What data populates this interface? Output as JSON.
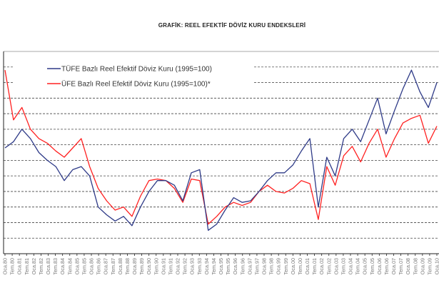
{
  "chart_data": {
    "type": "line",
    "title": "GRAFİK: REEL EFEKTİF DÖVİZ KURU ENDEKSLERİ",
    "xlabel": "",
    "ylabel": "",
    "x_range": [
      1980.0,
      2010.0
    ],
    "ylim": [
      0,
      130
    ],
    "y_gridlines": [
      10,
      20,
      30,
      40,
      50,
      60,
      70,
      80,
      90,
      100,
      110,
      120
    ],
    "y_unit_note": "relative index level (y-axis values not printed)",
    "grid": true,
    "legend_position": "top-left",
    "x_tick_labels": [
      "Oca.80",
      "Tem.80",
      "Oca.81",
      "Tem.81",
      "Oca.82",
      "Tem.82",
      "Oca.83",
      "Tem.83",
      "Oca.84",
      "Tem.84",
      "Oca.85",
      "Tem.85",
      "Oca.86",
      "Tem.86",
      "Oca.87",
      "Tem.87",
      "Oca.88",
      "Tem.88",
      "Oca.89",
      "Tem.89",
      "Oca.90",
      "Tem.90",
      "Oca.91",
      "Tem.91",
      "Oca.92",
      "Tem.92",
      "Oca.93",
      "Tem.93",
      "Oca.94",
      "Tem.94",
      "Oca.95",
      "Tem.95",
      "Oca.96",
      "Tem.96",
      "Oca.97",
      "Tem.97",
      "Oca.98",
      "Tem.98",
      "Oca.99",
      "Tem.99",
      "Oca.00",
      "Tem.00",
      "Oca.01",
      "Tem.01",
      "Oca.02",
      "Tem.02",
      "Oca.03",
      "Tem.03",
      "Oca.04",
      "Tem.04",
      "Oca.05",
      "Tem.05",
      "Oca.06",
      "Tem.06",
      "Oca.07",
      "Tem.07",
      "Oca.08",
      "Tem.08",
      "Oca.09",
      "Tem.09",
      "Oca.10"
    ],
    "series": [
      {
        "name": "TÜFE Bazlı Reel Efektif Döviz Kuru (1995=100)",
        "color": "#2e3a87",
        "values": [
          68,
          72,
          80,
          74,
          65,
          60,
          56,
          47,
          54,
          56,
          50,
          30,
          25,
          21,
          24,
          18,
          30,
          40,
          47,
          47,
          44,
          34,
          52,
          54,
          15,
          19,
          28,
          36,
          33,
          34,
          40,
          47,
          52,
          52,
          57,
          66,
          74,
          30,
          62,
          50,
          74,
          80,
          72,
          86,
          100,
          77,
          92,
          106,
          118,
          104,
          94,
          110
        ]
      },
      {
        "name": "ÜFE Bazlı Reel Efektif Döviz Kuru (1995=100)*",
        "color": "#ff2020",
        "values": [
          118,
          86,
          94,
          80,
          74,
          71,
          66,
          62,
          68,
          74,
          56,
          42,
          34,
          28,
          30,
          24,
          37,
          47,
          48,
          47,
          42,
          33,
          48,
          47,
          19,
          24,
          30,
          33,
          31,
          33,
          40,
          44,
          40,
          39,
          42,
          47,
          45,
          22,
          56,
          44,
          63,
          69,
          59,
          71,
          80,
          62,
          74,
          84,
          87,
          89,
          71,
          82
        ]
      }
    ]
  }
}
